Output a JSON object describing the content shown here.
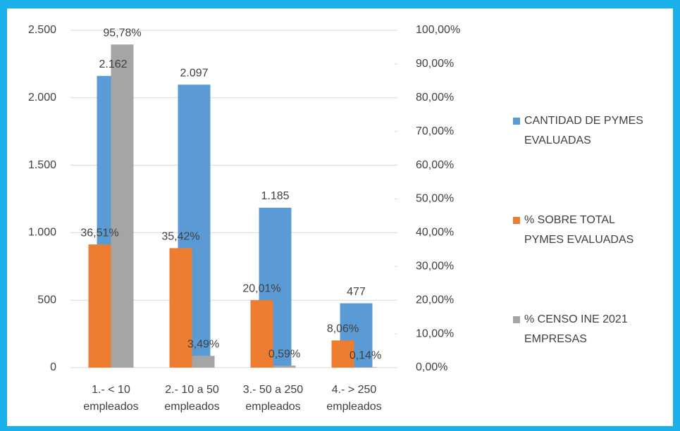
{
  "chart_data": {
    "type": "bar",
    "categories": [
      "1.- < 10 empleados",
      "2.- 10 a 50 empleados",
      "3.- 50 a 250 empleados",
      "4.- > 250 empleados"
    ],
    "series": [
      {
        "name": "CANTIDAD DE PYMES EVALUADAS",
        "color": "#5b9bd5",
        "values": [
          2162,
          2097,
          1185,
          477
        ],
        "value_labels": [
          "2.162",
          "2.097",
          "1.185",
          "477"
        ]
      },
      {
        "name": "% SOBRE TOTAL PYMES EVALUADAS",
        "color": "#ed7d31",
        "axis": "y2",
        "values": [
          36.51,
          35.42,
          20.01,
          8.06
        ],
        "value_labels": [
          "36,51%",
          "35,42%",
          "20,01%",
          "8,06%"
        ]
      },
      {
        "name": "% CENSO INE 2021 EMPRESAS",
        "color": "#a5a5a5",
        "axis": "y2",
        "values": [
          95.78,
          3.49,
          0.59,
          0.14
        ],
        "value_labels": [
          "95,78%",
          "3,49%",
          "0,59%",
          "0,14%"
        ]
      }
    ],
    "ylim": [
      0,
      2500
    ],
    "yticks": [
      0,
      500,
      {
        "value": 1000,
        "label": "1.000"
      },
      {
        "value": 1500,
        "label": "1.500"
      },
      {
        "value": 2000,
        "label": "2.000"
      },
      {
        "value": 2500,
        "label": "2.500"
      }
    ],
    "y2lim": [
      0,
      100
    ],
    "y2ticks": [
      {
        "value": 0,
        "label": "0,00%"
      },
      {
        "value": 10,
        "label": "10,00%"
      },
      {
        "value": 20,
        "label": "20,00%"
      },
      {
        "value": 30,
        "label": "30,00%"
      },
      {
        "value": 40,
        "label": "40,00%"
      },
      {
        "value": 50,
        "label": "50,00%"
      },
      {
        "value": 60,
        "label": "60,00%"
      },
      {
        "value": 70,
        "label": "70,00%"
      },
      {
        "value": 80,
        "label": "80,00%"
      },
      {
        "value": 90,
        "label": "90,00%"
      },
      {
        "value": 100,
        "label": "100,00%"
      }
    ],
    "grid": true,
    "legend": "right"
  }
}
